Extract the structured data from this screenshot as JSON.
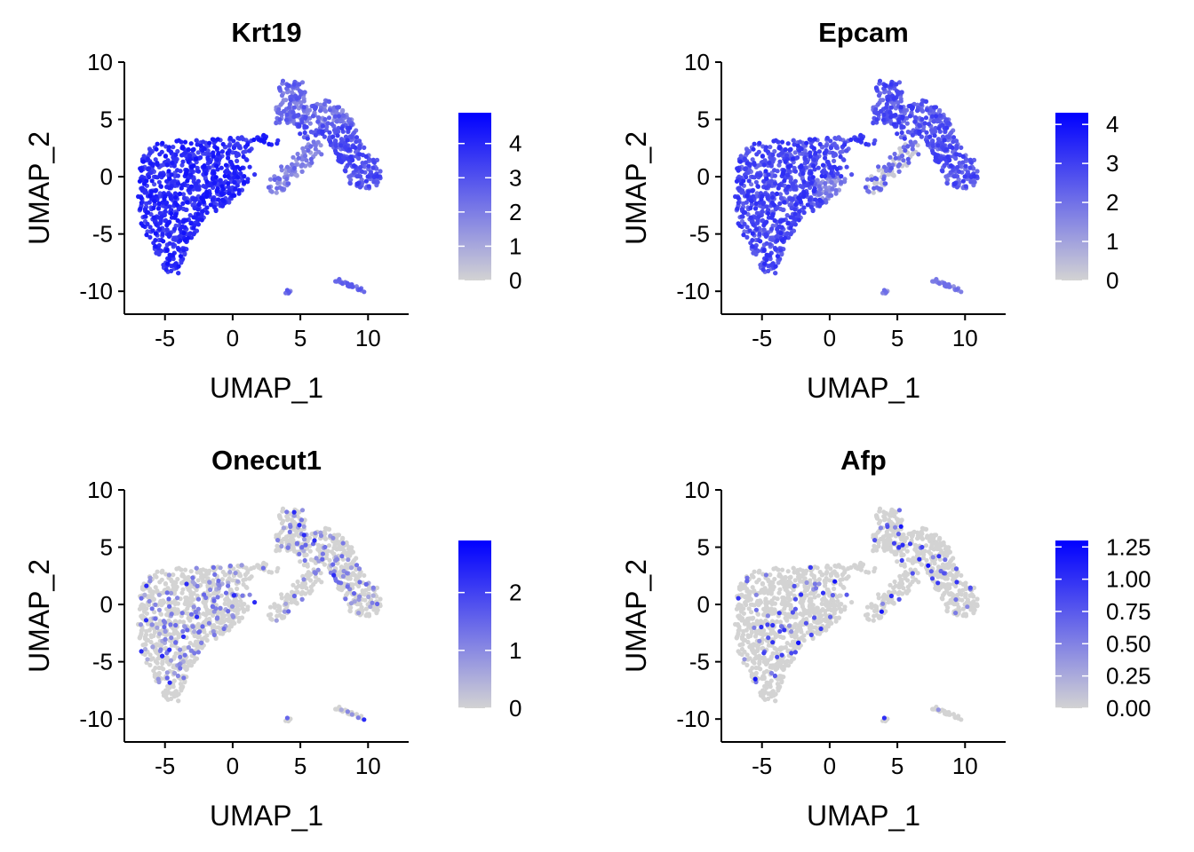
{
  "figure": {
    "xlabel": "UMAP_1",
    "ylabel": "UMAP_2",
    "colors": {
      "low": "#d3d3d3",
      "high": "#0000ff",
      "axis": "#000000"
    }
  },
  "chart_data": [
    {
      "type": "scatter",
      "title": "Krt19",
      "xlabel": "UMAP_1",
      "ylabel": "UMAP_2",
      "xlim": [
        -8,
        13
      ],
      "ylim": [
        -12,
        10
      ],
      "xticks": [
        "-5",
        "0",
        "5",
        "10"
      ],
      "yticks": [
        "10",
        "5",
        "0",
        "-5",
        "-10"
      ],
      "legend": {
        "position": "right",
        "min": 0,
        "max": 4.9,
        "ticks": [
          "4",
          "3",
          "2",
          "1",
          "0"
        ]
      },
      "expression": "high-broad"
    },
    {
      "type": "scatter",
      "title": "Epcam",
      "xlabel": "UMAP_1",
      "ylabel": "UMAP_2",
      "xlim": [
        -8,
        13
      ],
      "ylim": [
        -12,
        10
      ],
      "xticks": [
        "-5",
        "0",
        "5",
        "10"
      ],
      "yticks": [
        "10",
        "5",
        "0",
        "-5",
        "-10"
      ],
      "legend": {
        "position": "right",
        "min": 0,
        "max": 4.3,
        "ticks": [
          "4",
          "3",
          "2",
          "1",
          "0"
        ]
      },
      "expression": "medium-broad"
    },
    {
      "type": "scatter",
      "title": "Onecut1",
      "xlabel": "UMAP_1",
      "ylabel": "UMAP_2",
      "xlim": [
        -8,
        13
      ],
      "ylim": [
        -12,
        10
      ],
      "xticks": [
        "-5",
        "0",
        "5",
        "10"
      ],
      "yticks": [
        "10",
        "5",
        "0",
        "-5",
        "-10"
      ],
      "legend": {
        "position": "right",
        "min": 0,
        "max": 2.9,
        "ticks": [
          "2",
          "1",
          "0"
        ]
      },
      "expression": "sparse-low"
    },
    {
      "type": "scatter",
      "title": "Afp",
      "xlabel": "UMAP_1",
      "ylabel": "UMAP_2",
      "xlim": [
        -8,
        13
      ],
      "ylim": [
        -12,
        10
      ],
      "xticks": [
        "-5",
        "0",
        "5",
        "10"
      ],
      "yticks": [
        "10",
        "5",
        "0",
        "-5",
        "-10"
      ],
      "legend": {
        "position": "right",
        "min": 0,
        "max": 1.3,
        "ticks": [
          "1.25",
          "1.00",
          "0.75",
          "0.50",
          "0.25",
          "0.00"
        ]
      },
      "expression": "sparse-very-low"
    }
  ]
}
